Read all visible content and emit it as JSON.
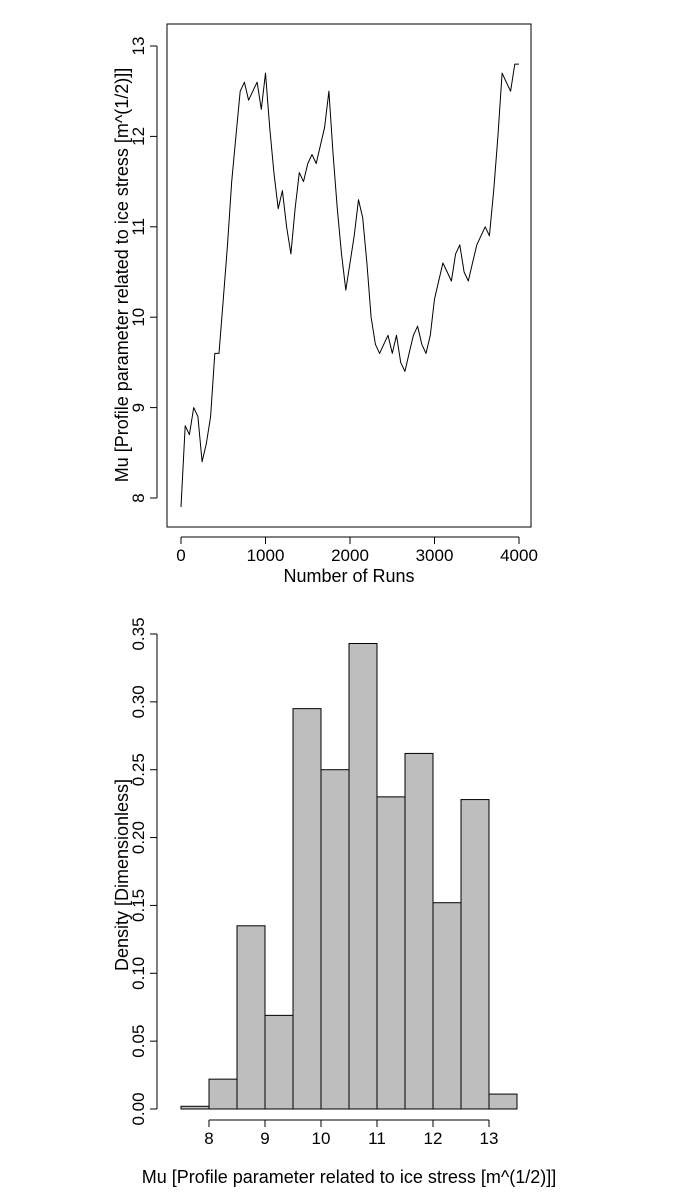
{
  "colors": {
    "background": "#ffffff",
    "line": "#000000",
    "bar_fill": "#bebebe",
    "bar_stroke": "#000000",
    "axis": "#000000"
  },
  "chart_data": [
    {
      "type": "line",
      "title": "",
      "xlabel": "Number of Runs",
      "ylabel": "Mu [Profile parameter related to ice stress [m^(1/2)]]",
      "xlim": [
        0,
        4000
      ],
      "ylim": [
        7.87,
        13.05
      ],
      "xticks": [
        0,
        1000,
        2000,
        3000,
        4000
      ],
      "yticks": [
        8,
        9,
        10,
        11,
        12,
        13
      ],
      "grid": false,
      "series": [
        {
          "x": [
            0,
            50,
            100,
            150,
            200,
            250,
            300,
            350,
            400,
            450,
            500,
            550,
            600,
            650,
            700,
            750,
            800,
            850,
            900,
            950,
            1000,
            1050,
            1100,
            1150,
            1200,
            1250,
            1300,
            1350,
            1400,
            1450,
            1500,
            1550,
            1600,
            1650,
            1700,
            1750,
            1800,
            1850,
            1900,
            1950,
            2000,
            2050,
            2100,
            2150,
            2200,
            2250,
            2300,
            2350,
            2400,
            2450,
            2500,
            2550,
            2600,
            2650,
            2700,
            2750,
            2800,
            2850,
            2900,
            2950,
            3000,
            3050,
            3100,
            3150,
            3200,
            3250,
            3300,
            3350,
            3400,
            3450,
            3500,
            3550,
            3600,
            3650,
            3700,
            3750,
            3800,
            3850,
            3900,
            3950,
            4000
          ],
          "y": [
            7.9,
            8.8,
            8.7,
            9.0,
            8.9,
            8.4,
            8.6,
            8.9,
            9.6,
            9.6,
            10.2,
            10.8,
            11.5,
            12.0,
            12.5,
            12.6,
            12.4,
            12.5,
            12.6,
            12.3,
            12.7,
            12.1,
            11.6,
            11.2,
            11.4,
            11.0,
            10.7,
            11.2,
            11.6,
            11.5,
            11.7,
            11.8,
            11.7,
            11.9,
            12.1,
            12.5,
            11.8,
            11.2,
            10.7,
            10.3,
            10.6,
            10.9,
            11.3,
            11.1,
            10.6,
            10.0,
            9.7,
            9.6,
            9.7,
            9.8,
            9.6,
            9.8,
            9.5,
            9.4,
            9.6,
            9.8,
            9.9,
            9.7,
            9.6,
            9.8,
            10.2,
            10.4,
            10.6,
            10.5,
            10.4,
            10.7,
            10.8,
            10.5,
            10.4,
            10.6,
            10.8,
            10.9,
            11.0,
            10.9,
            11.4,
            12.0,
            12.7,
            12.6,
            12.5,
            12.8,
            12.8
          ]
        }
      ]
    },
    {
      "type": "bar",
      "subtype": "histogram",
      "title": "",
      "xlabel": "Mu [Profile parameter related to ice stress [m^(1/2)]]",
      "ylabel": "Density [Dimensionless]",
      "bins": [
        [
          7.5,
          8.0
        ],
        [
          8.0,
          8.5
        ],
        [
          8.5,
          9.0
        ],
        [
          9.0,
          9.5
        ],
        [
          9.5,
          10.0
        ],
        [
          10.0,
          10.5
        ],
        [
          10.5,
          11.0
        ],
        [
          11.0,
          11.5
        ],
        [
          11.5,
          12.0
        ],
        [
          12.0,
          12.5
        ],
        [
          12.5,
          13.0
        ],
        [
          13.0,
          13.5
        ]
      ],
      "values": [
        0.002,
        0.022,
        0.135,
        0.069,
        0.295,
        0.25,
        0.343,
        0.23,
        0.262,
        0.152,
        0.228,
        0.011
      ],
      "xlim": [
        7.5,
        13.5
      ],
      "ylim": [
        0,
        0.35
      ],
      "xticks": [
        8,
        9,
        10,
        11,
        12,
        13
      ],
      "yticks": [
        "0.00",
        "0.05",
        "0.10",
        "0.15",
        "0.20",
        "0.25",
        "0.30",
        "0.35"
      ],
      "grid": false
    }
  ]
}
